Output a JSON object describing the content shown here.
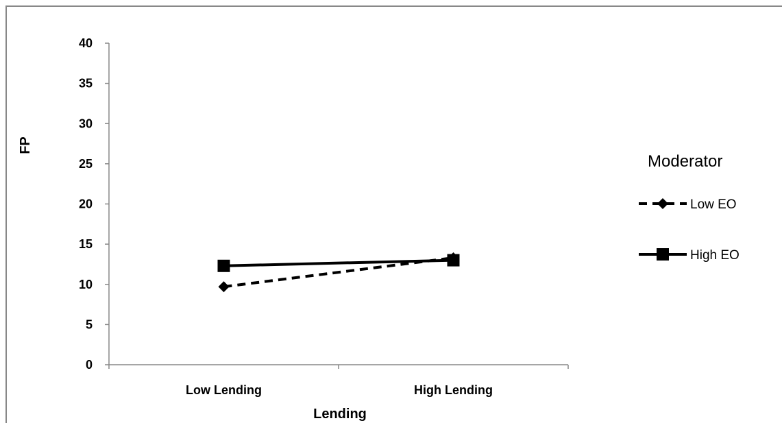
{
  "chart_data": {
    "type": "line",
    "categories": [
      "Low Lending",
      "High Lending"
    ],
    "series": [
      {
        "name": "Low EO",
        "values": [
          9.7,
          13.3
        ],
        "style": "dashed",
        "marker": "diamond"
      },
      {
        "name": "High EO",
        "values": [
          12.3,
          13.0
        ],
        "style": "solid",
        "marker": "square"
      }
    ],
    "title": "",
    "xlabel": "Lending",
    "ylabel": "FP",
    "ylim": [
      0,
      40
    ],
    "yticks": [
      "0",
      "5",
      "10",
      "15",
      "20",
      "25",
      "30",
      "35",
      "40"
    ],
    "legend": {
      "title": "Moderator",
      "position": "right"
    },
    "grid": false,
    "line_color": "#000000"
  }
}
